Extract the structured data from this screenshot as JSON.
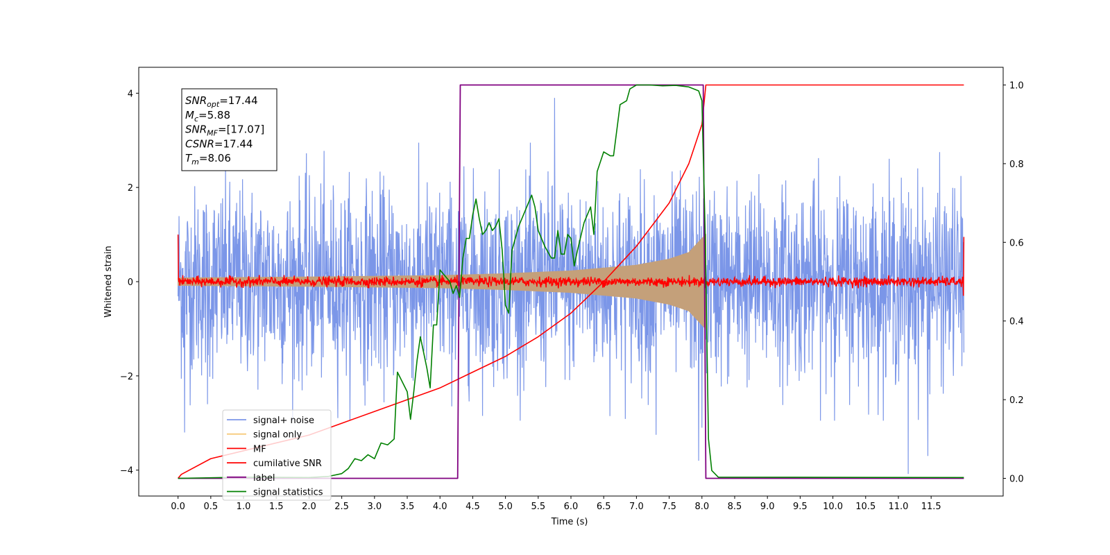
{
  "chart_data": {
    "type": "line",
    "title": "",
    "xlabel": "Time (s)",
    "ylabel": "Whitened strain",
    "xlim": [
      -0.6,
      12.6
    ],
    "ylim": [
      -4.55,
      4.55
    ],
    "y2lim": [
      -0.045,
      1.045
    ],
    "grid": false,
    "legend_position": "lower-left",
    "x_ticks": [
      "0.0",
      "0.5",
      "1.0",
      "1.5",
      "2.0",
      "2.5",
      "3.0",
      "3.5",
      "4.0",
      "4.5",
      "5.0",
      "5.5",
      "6.0",
      "6.5",
      "7.0",
      "7.5",
      "8.0",
      "8.5",
      "9.0",
      "9.5",
      "10.0",
      "10.5",
      "11.0",
      "11.5"
    ],
    "y_ticks": [
      "4",
      "2",
      "0",
      "−2",
      "−4"
    ],
    "y2_ticks": [
      "1.0",
      "0.8",
      "0.6",
      "0.4",
      "0.2",
      "0.0"
    ],
    "annotation": {
      "lines": [
        {
          "base": "SNR",
          "sub": "opt",
          "value": "=17.44"
        },
        {
          "base": "M",
          "sub": "c",
          "value": "=5.88"
        },
        {
          "base": "SNR",
          "sub": "MF",
          "value": "=[17.07]"
        },
        {
          "base": "CSNR",
          "sub": "",
          "value": "=17.44"
        },
        {
          "base": "T",
          "sub": "m",
          "value": "=8.06"
        }
      ]
    },
    "legend": [
      {
        "label": "signal+ noise",
        "color": "#7b96e8"
      },
      {
        "label": "signal only",
        "color": "#f7c97a"
      },
      {
        "label": "MF",
        "color": "#ff0000"
      },
      {
        "label": "cumilative SNR",
        "color": "#ff0000"
      },
      {
        "label": "label",
        "color": "#800080"
      },
      {
        "label": "signal statistics",
        "color": "#008000"
      }
    ],
    "series": [
      {
        "name": "signal+ noise",
        "axis": "left",
        "color": "#7b96e8",
        "kind": "noise",
        "x_range": [
          0,
          12.0
        ],
        "noise_sd": 1.0,
        "extremes": [
          [
            11.15,
            -4.08
          ],
          [
            11.45,
            -3.7
          ],
          [
            5.75,
            3.9
          ],
          [
            0.45,
            -2.6
          ],
          [
            0.1,
            -3.2
          ],
          [
            7.3,
            -3.25
          ],
          [
            7.95,
            -3.8
          ],
          [
            8.0,
            -3.1
          ]
        ]
      },
      {
        "name": "signal only",
        "axis": "left",
        "color": "#c4a07a",
        "kind": "chirp_envelope",
        "x_range": [
          0,
          8.06
        ],
        "envelope": [
          [
            0,
            0.08
          ],
          [
            2.0,
            0.1
          ],
          [
            4.0,
            0.13
          ],
          [
            5.0,
            0.17
          ],
          [
            6.0,
            0.23
          ],
          [
            7.0,
            0.35
          ],
          [
            7.5,
            0.48
          ],
          [
            7.8,
            0.62
          ],
          [
            8.0,
            0.92
          ],
          [
            8.06,
            1.0
          ]
        ]
      },
      {
        "name": "MF",
        "axis": "left",
        "color": "#ff0000",
        "kind": "small_noise",
        "x_range": [
          0,
          12.0
        ],
        "noise_sd": 0.05,
        "end_spikes": [
          [
            0.0,
            1.0
          ],
          [
            12.0,
            0.95
          ]
        ]
      },
      {
        "name": "cumilative SNR",
        "axis": "right",
        "color": "#ff0000",
        "points": [
          [
            0,
            0.0
          ],
          [
            0.05,
            0.01
          ],
          [
            0.5,
            0.05
          ],
          [
            1.0,
            0.07
          ],
          [
            1.5,
            0.09
          ],
          [
            2.0,
            0.11
          ],
          [
            2.5,
            0.14
          ],
          [
            3.0,
            0.17
          ],
          [
            3.5,
            0.2
          ],
          [
            4.0,
            0.23
          ],
          [
            4.5,
            0.27
          ],
          [
            5.0,
            0.31
          ],
          [
            5.5,
            0.36
          ],
          [
            6.0,
            0.42
          ],
          [
            6.5,
            0.5
          ],
          [
            7.0,
            0.59
          ],
          [
            7.5,
            0.7
          ],
          [
            7.8,
            0.8
          ],
          [
            8.0,
            0.9
          ],
          [
            8.06,
            1.0
          ],
          [
            12.0,
            1.0
          ]
        ]
      },
      {
        "name": "label",
        "axis": "right",
        "color": "#800080",
        "points": [
          [
            0,
            0.0
          ],
          [
            4.27,
            0.0
          ],
          [
            4.31,
            1.0
          ],
          [
            8.02,
            1.0
          ],
          [
            8.06,
            0.0
          ],
          [
            12.0,
            0.0
          ]
        ]
      },
      {
        "name": "signal statistics",
        "axis": "right",
        "color": "#008000",
        "points": [
          [
            0,
            0.0
          ],
          [
            1.0,
            0.003
          ],
          [
            2.0,
            0.002
          ],
          [
            2.3,
            0.005
          ],
          [
            2.5,
            0.012
          ],
          [
            2.6,
            0.025
          ],
          [
            2.7,
            0.05
          ],
          [
            2.8,
            0.045
          ],
          [
            2.9,
            0.06
          ],
          [
            3.0,
            0.05
          ],
          [
            3.1,
            0.09
          ],
          [
            3.2,
            0.085
          ],
          [
            3.3,
            0.1
          ],
          [
            3.35,
            0.27
          ],
          [
            3.5,
            0.22
          ],
          [
            3.55,
            0.15
          ],
          [
            3.6,
            0.22
          ],
          [
            3.65,
            0.3
          ],
          [
            3.7,
            0.36
          ],
          [
            3.8,
            0.28
          ],
          [
            3.85,
            0.23
          ],
          [
            3.9,
            0.39
          ],
          [
            3.95,
            0.39
          ],
          [
            4.0,
            0.53
          ],
          [
            4.1,
            0.51
          ],
          [
            4.15,
            0.5
          ],
          [
            4.2,
            0.47
          ],
          [
            4.25,
            0.49
          ],
          [
            4.3,
            0.46
          ],
          [
            4.35,
            0.56
          ],
          [
            4.4,
            0.61
          ],
          [
            4.45,
            0.61
          ],
          [
            4.5,
            0.67
          ],
          [
            4.55,
            0.71
          ],
          [
            4.6,
            0.66
          ],
          [
            4.65,
            0.62
          ],
          [
            4.7,
            0.63
          ],
          [
            4.75,
            0.65
          ],
          [
            4.8,
            0.63
          ],
          [
            4.85,
            0.64
          ],
          [
            4.9,
            0.66
          ],
          [
            4.95,
            0.58
          ],
          [
            5.0,
            0.44
          ],
          [
            5.05,
            0.42
          ],
          [
            5.1,
            0.58
          ],
          [
            5.2,
            0.64
          ],
          [
            5.3,
            0.68
          ],
          [
            5.4,
            0.72
          ],
          [
            5.45,
            0.69
          ],
          [
            5.5,
            0.63
          ],
          [
            5.6,
            0.59
          ],
          [
            5.7,
            0.56
          ],
          [
            5.75,
            0.56
          ],
          [
            5.8,
            0.63
          ],
          [
            5.85,
            0.57
          ],
          [
            5.9,
            0.57
          ],
          [
            5.95,
            0.62
          ],
          [
            6.0,
            0.61
          ],
          [
            6.05,
            0.54
          ],
          [
            6.1,
            0.58
          ],
          [
            6.2,
            0.65
          ],
          [
            6.3,
            0.69
          ],
          [
            6.35,
            0.62
          ],
          [
            6.4,
            0.78
          ],
          [
            6.5,
            0.83
          ],
          [
            6.6,
            0.82
          ],
          [
            6.65,
            0.82
          ],
          [
            6.75,
            0.95
          ],
          [
            6.85,
            0.96
          ],
          [
            6.9,
            0.99
          ],
          [
            7.0,
            1.0
          ],
          [
            7.2,
            1.0
          ],
          [
            7.4,
            0.998
          ],
          [
            7.6,
            0.999
          ],
          [
            7.8,
            0.995
          ],
          [
            7.95,
            0.985
          ],
          [
            8.0,
            0.96
          ],
          [
            8.05,
            0.62
          ],
          [
            8.1,
            0.1
          ],
          [
            8.15,
            0.02
          ],
          [
            8.25,
            0.003
          ],
          [
            12.0,
            0.002
          ]
        ]
      }
    ]
  }
}
